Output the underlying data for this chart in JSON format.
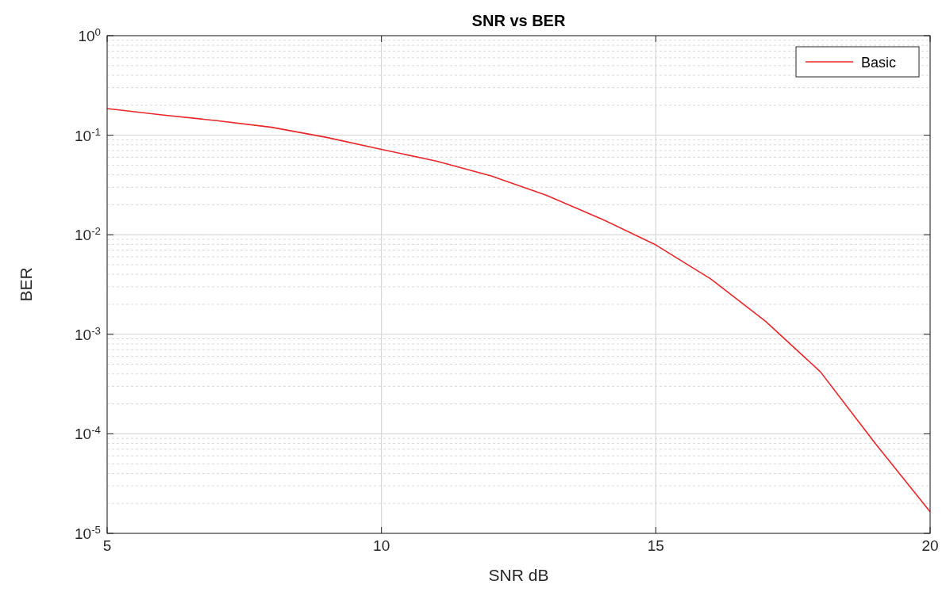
{
  "chart_data": {
    "type": "line",
    "title": "SNR vs BER",
    "xlabel": "SNR dB",
    "ylabel": "BER",
    "x": [
      5,
      6,
      7,
      8,
      9,
      10,
      11,
      12,
      13,
      14,
      15,
      16,
      17,
      18,
      19,
      20
    ],
    "series": [
      {
        "name": "Basic",
        "color": "#e8262a",
        "values": [
          0.185,
          0.16,
          0.14,
          0.12,
          0.095,
          0.072,
          0.055,
          0.039,
          0.025,
          0.0145,
          0.0079,
          0.0036,
          0.00135,
          0.00042,
          8e-05,
          1.65e-05
        ]
      }
    ],
    "xlim": [
      5,
      20
    ],
    "xticks": [
      5,
      10,
      15,
      20
    ],
    "ylim": [
      1e-05,
      1
    ],
    "yticks": [
      {
        "value": 1e-05,
        "label": "10$^{-5}$"
      },
      {
        "value": 0.0001,
        "label": "10$^{-4}$"
      },
      {
        "value": 0.001,
        "label": "10$^{-3}$"
      },
      {
        "value": 0.01,
        "label": "10$^{-2}$"
      },
      {
        "value": 0.1,
        "label": "10$^{-1}$"
      },
      {
        "value": 1,
        "label": "10$^{0}$"
      }
    ],
    "log": true,
    "grid": true,
    "legend": "top right",
    "marker": "none",
    "line_style": "solid"
  }
}
